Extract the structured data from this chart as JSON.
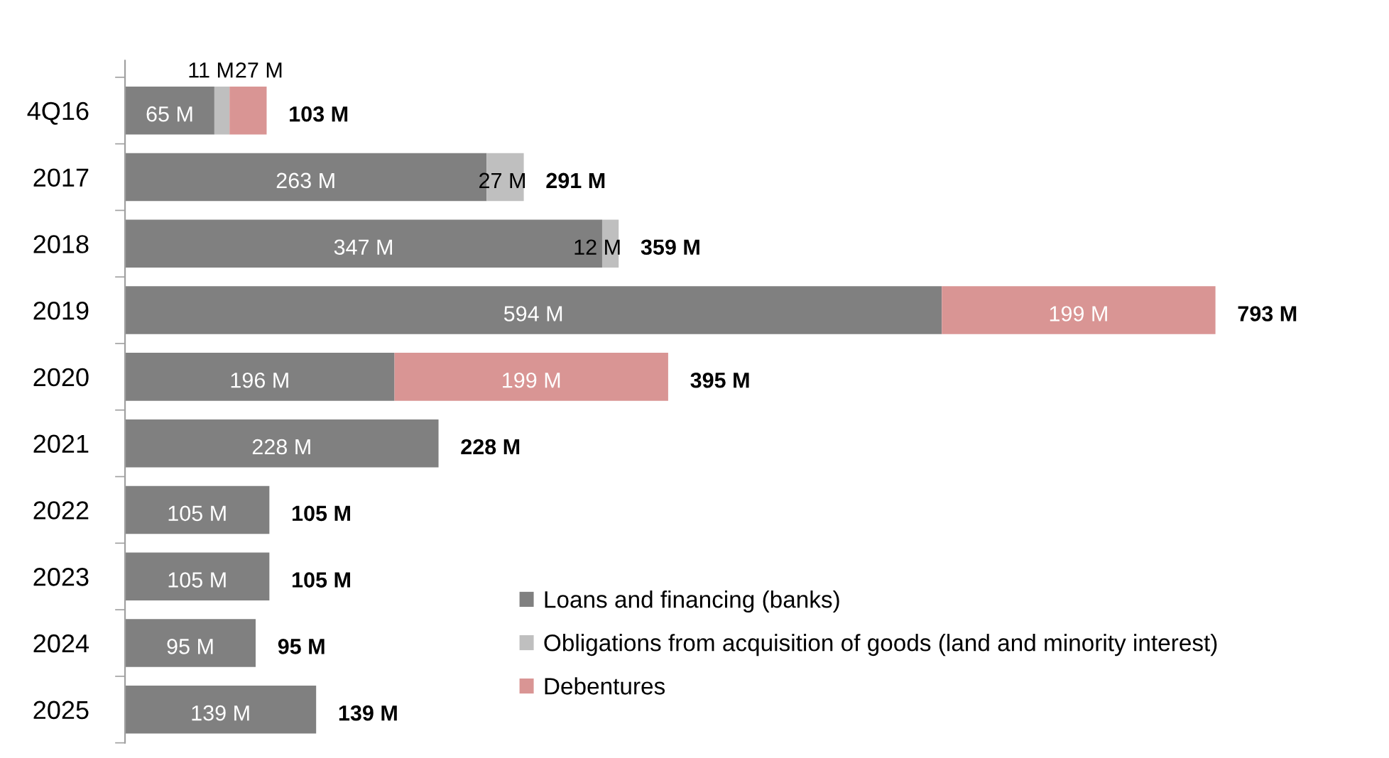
{
  "chart_data": {
    "type": "bar",
    "orientation": "horizontal",
    "stacked": true,
    "categories": [
      "4Q16",
      "2017",
      "2018",
      "2019",
      "2020",
      "2021",
      "2022",
      "2023",
      "2024",
      "2025"
    ],
    "series": [
      {
        "name": "Loans and financing (banks)",
        "color": "#808080",
        "values": [
          65,
          263,
          347,
          594,
          196,
          228,
          105,
          105,
          95,
          139
        ],
        "value_labels": [
          "65 M",
          "263 M",
          "347 M",
          "594 M",
          "196 M",
          "228 M",
          "105 M",
          "105 M",
          "95 M",
          "139 M"
        ]
      },
      {
        "name": "Obligations from acquisition of goods (land and minority interest)",
        "color": "#bfbfbf",
        "values": [
          11,
          27,
          12,
          null,
          null,
          null,
          null,
          null,
          null,
          null
        ],
        "value_labels": [
          "11 M",
          "27 M",
          "12 M",
          null,
          null,
          null,
          null,
          null,
          null,
          null
        ]
      },
      {
        "name": "Debentures",
        "color": "#d99594",
        "values": [
          27,
          null,
          null,
          199,
          199,
          null,
          null,
          null,
          null,
          null
        ],
        "value_labels": [
          "27 M",
          null,
          null,
          "199 M",
          "199 M",
          null,
          null,
          null,
          null,
          null
        ]
      }
    ],
    "totals": [
      "103 M",
      "291 M",
      "359 M",
      "793 M",
      "395 M",
      "228 M",
      "105 M",
      "105 M",
      "95 M",
      "139 M"
    ],
    "legend": "bottom right",
    "grid": false
  }
}
